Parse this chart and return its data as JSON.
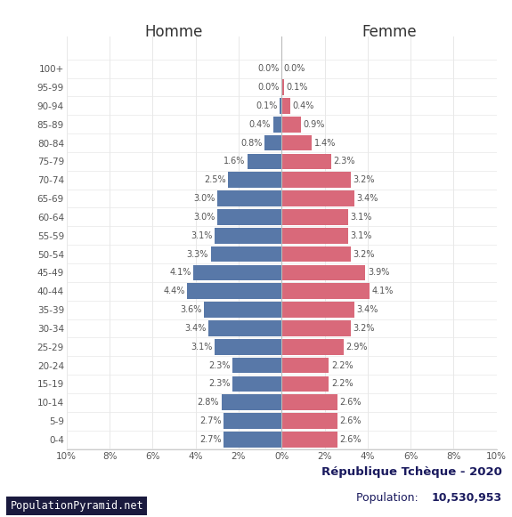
{
  "age_groups": [
    "0-4",
    "5-9",
    "10-14",
    "15-19",
    "20-24",
    "25-29",
    "30-34",
    "35-39",
    "40-44",
    "45-49",
    "50-54",
    "55-59",
    "60-64",
    "65-69",
    "70-74",
    "75-79",
    "80-84",
    "85-89",
    "90-94",
    "95-99",
    "100+"
  ],
  "male": [
    2.7,
    2.7,
    2.8,
    2.3,
    2.3,
    3.1,
    3.4,
    3.6,
    4.4,
    4.1,
    3.3,
    3.1,
    3.0,
    3.0,
    2.5,
    1.6,
    0.8,
    0.4,
    0.1,
    0.0,
    0.0
  ],
  "female": [
    2.6,
    2.6,
    2.6,
    2.2,
    2.2,
    2.9,
    3.2,
    3.4,
    4.1,
    3.9,
    3.2,
    3.1,
    3.1,
    3.4,
    3.2,
    2.3,
    1.4,
    0.9,
    0.4,
    0.1,
    0.0
  ],
  "male_color": "#5878a8",
  "female_color": "#d9697a",
  "male_label": "Homme",
  "female_label": "Femme",
  "title_line1": "République Tchèque - 2020",
  "population_label": "Population: ",
  "population_bold": "10,530,953",
  "watermark": "PopulationPyramid.net",
  "xlim": 10,
  "background_color": "#ffffff",
  "bar_height": 0.85,
  "dark_navy": "#1a1a5e",
  "watermark_bg": "#1a1a3e",
  "text_color": "#555555",
  "label_fontsize": 7.0,
  "tick_fontsize": 7.5,
  "header_fontsize": 12
}
